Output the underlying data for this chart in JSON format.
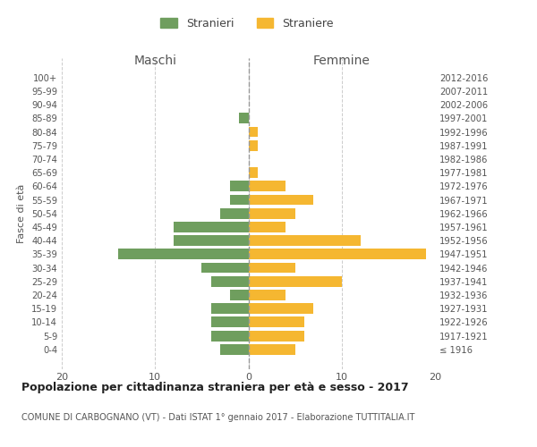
{
  "age_groups": [
    "100+",
    "95-99",
    "90-94",
    "85-89",
    "80-84",
    "75-79",
    "70-74",
    "65-69",
    "60-64",
    "55-59",
    "50-54",
    "45-49",
    "40-44",
    "35-39",
    "30-34",
    "25-29",
    "20-24",
    "15-19",
    "10-14",
    "5-9",
    "0-4"
  ],
  "birth_years": [
    "≤ 1916",
    "1917-1921",
    "1922-1926",
    "1927-1931",
    "1932-1936",
    "1937-1941",
    "1942-1946",
    "1947-1951",
    "1952-1956",
    "1957-1961",
    "1962-1966",
    "1967-1971",
    "1972-1976",
    "1977-1981",
    "1982-1986",
    "1987-1991",
    "1992-1996",
    "1997-2001",
    "2002-2006",
    "2007-2011",
    "2012-2016"
  ],
  "maschi": [
    0,
    0,
    0,
    1,
    0,
    0,
    0,
    0,
    2,
    2,
    3,
    8,
    8,
    14,
    5,
    4,
    2,
    4,
    4,
    4,
    3
  ],
  "femmine": [
    0,
    0,
    0,
    0,
    1,
    1,
    0,
    1,
    4,
    7,
    5,
    4,
    12,
    19,
    5,
    10,
    4,
    7,
    6,
    6,
    5
  ],
  "maschi_color": "#6f9e5e",
  "femmine_color": "#f5b731",
  "title": "Popolazione per cittadinanza straniera per età e sesso - 2017",
  "subtitle": "COMUNE DI CARBOGNANO (VT) - Dati ISTAT 1° gennaio 2017 - Elaborazione TUTTITALIA.IT",
  "ylabel_left": "Fasce di età",
  "xlabel_left": "Maschi",
  "xlabel_right": "Femmine",
  "legend_maschi": "Stranieri",
  "legend_femmine": "Straniere",
  "xlim": 20,
  "background_color": "#ffffff",
  "grid_color": "#cccccc"
}
